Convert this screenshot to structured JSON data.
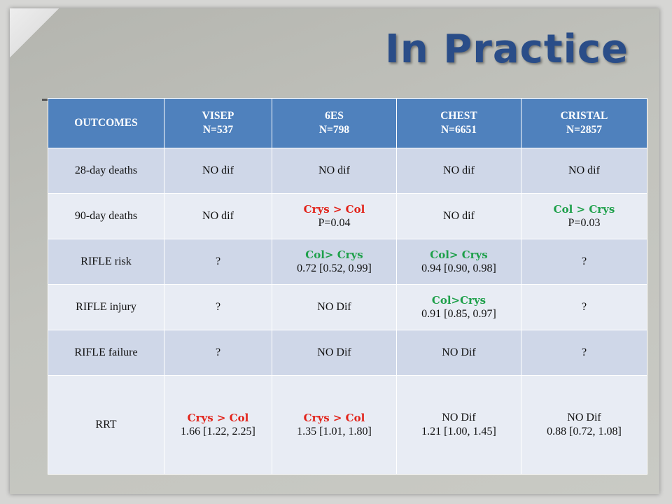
{
  "slide": {
    "title": "In Practice"
  },
  "table": {
    "headers": [
      {
        "line1": "OUTCOMES",
        "line2": ""
      },
      {
        "line1": "VISEP",
        "line2": "N=537"
      },
      {
        "line1": "6ES",
        "line2": "N=798"
      },
      {
        "line1": "CHEST",
        "line2": "N=6651"
      },
      {
        "line1": "CRISTAL",
        "line2": "N=2857"
      }
    ],
    "rows": [
      {
        "outcome": "28-day deaths",
        "cells": [
          {
            "main": "NO dif",
            "detail": "",
            "color": ""
          },
          {
            "main": "NO dif",
            "detail": "",
            "color": ""
          },
          {
            "main": "NO dif",
            "detail": "",
            "color": ""
          },
          {
            "main": "NO dif",
            "detail": "",
            "color": ""
          }
        ]
      },
      {
        "outcome": "90-day deaths",
        "cells": [
          {
            "main": "NO dif",
            "detail": "",
            "color": ""
          },
          {
            "main": "Crys > Col",
            "detail": "P=0.04",
            "color": "#e2231a"
          },
          {
            "main": "NO dif",
            "detail": "",
            "color": ""
          },
          {
            "main": "Col > Crys",
            "detail": "P=0.03",
            "color": "#1ea04a"
          }
        ]
      },
      {
        "outcome": "RIFLE risk",
        "cells": [
          {
            "main": "?",
            "detail": "",
            "color": ""
          },
          {
            "main": "Col> Crys",
            "detail": "0.72 [0.52, 0.99]",
            "color": "#1ea04a"
          },
          {
            "main": "Col> Crys",
            "detail": "0.94 [0.90, 0.98]",
            "color": "#1ea04a"
          },
          {
            "main": "?",
            "detail": "",
            "color": ""
          }
        ]
      },
      {
        "outcome": "RIFLE injury",
        "cells": [
          {
            "main": "?",
            "detail": "",
            "color": ""
          },
          {
            "main": "NO Dif",
            "detail": "",
            "color": ""
          },
          {
            "main": "Col>Crys",
            "detail": "0.91 [0.85, 0.97]",
            "color": "#1ea04a"
          },
          {
            "main": "?",
            "detail": "",
            "color": ""
          }
        ]
      },
      {
        "outcome": "RIFLE failure",
        "cells": [
          {
            "main": "?",
            "detail": "",
            "color": ""
          },
          {
            "main": "NO Dif",
            "detail": "",
            "color": ""
          },
          {
            "main": "NO Dif",
            "detail": "",
            "color": ""
          },
          {
            "main": "?",
            "detail": "",
            "color": ""
          }
        ]
      },
      {
        "outcome": "RRT",
        "cells": [
          {
            "main": "Crys > Col",
            "detail": "1.66 [1.22, 2.25]",
            "color": "#e2231a"
          },
          {
            "main": "Crys > Col",
            "detail": "1.35 [1.01, 1.80]",
            "color": "#e2231a"
          },
          {
            "main": "NO Dif",
            "detail": "1.21 [1.00, 1.45]",
            "color": ""
          },
          {
            "main": "NO Dif",
            "detail": "0.88 [0.72, 1.08]",
            "color": ""
          }
        ]
      }
    ]
  },
  "colors": {
    "title": "#2a4d88",
    "header_bg": "#4f81bd",
    "band_bg": "#cfd7e8",
    "light_bg": "#e8ecf4",
    "red": "#e2231a",
    "green": "#1ea04a"
  }
}
